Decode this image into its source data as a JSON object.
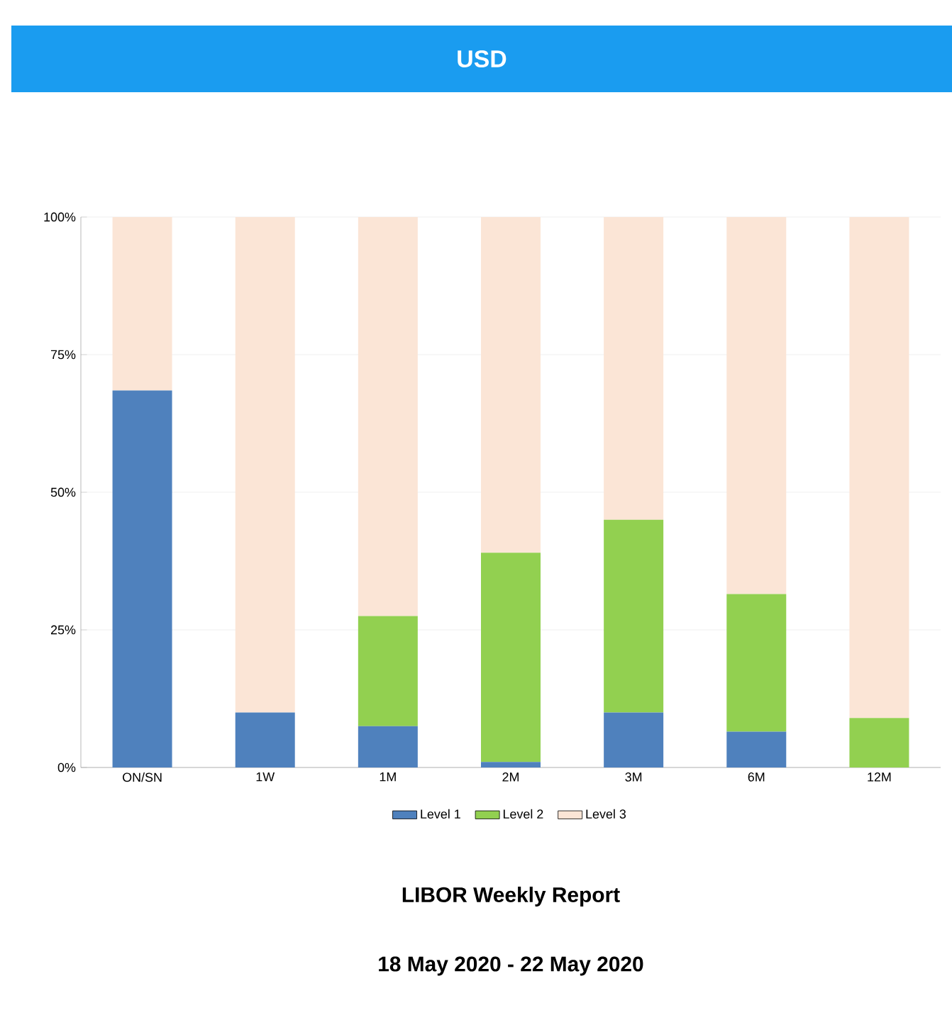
{
  "chart_data": {
    "type": "bar",
    "title": "USD",
    "stacked": true,
    "categories": [
      "ON/SN",
      "1W",
      "1M",
      "2M",
      "3M",
      "6M",
      "12M"
    ],
    "series": [
      {
        "name": "Level 1",
        "color": "#4f81bd",
        "values": [
          68.5,
          10,
          7.5,
          1,
          10,
          6.5,
          0
        ]
      },
      {
        "name": "Level 2",
        "color": "#92d050",
        "values": [
          0,
          0,
          20,
          38,
          35,
          25,
          9
        ]
      },
      {
        "name": "Level 3",
        "color": "#fbe5d6",
        "values": [
          31.5,
          90,
          72.5,
          61,
          55,
          68.5,
          91
        ]
      }
    ],
    "ylim": [
      0,
      100
    ],
    "yticks": [
      {
        "value": 0,
        "label": "0%"
      },
      {
        "value": 25,
        "label": "25%"
      },
      {
        "value": 50,
        "label": "50%"
      },
      {
        "value": 75,
        "label": "75%"
      },
      {
        "value": 100,
        "label": "100%"
      }
    ],
    "grid": "y",
    "legend": "bottom",
    "annotations": [
      "LIBOR Weekly Report",
      "18 May 2020 - 22 May 2020"
    ]
  }
}
